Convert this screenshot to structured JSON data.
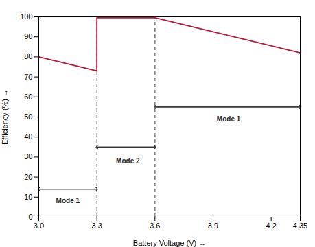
{
  "chart_data": {
    "type": "line",
    "xlabel": "Battery Voltage (V)",
    "ylabel": "Efficiency (%)",
    "x": [
      3.0,
      3.3,
      3.3,
      3.6,
      4.35
    ],
    "series": [
      {
        "color": "#b8173a",
        "values": [
          80,
          73,
          99.5,
          99.5,
          82
        ]
      }
    ],
    "xlim": [
      3.0,
      4.35
    ],
    "ylim": [
      0,
      100
    ],
    "xticks": [
      {
        "value": 3.0,
        "label": "3.0"
      },
      3.3,
      3.6,
      3.9,
      4.2,
      4.35
    ],
    "yticks": [
      0,
      10,
      20,
      30,
      40,
      50,
      60,
      70,
      80,
      90,
      100
    ],
    "grid": false,
    "vlines": {
      "x": [
        3.3,
        3.6
      ],
      "color": "#555555",
      "line_style": "dashed"
    },
    "annotations": [
      {
        "text": "Mode 1",
        "x": 3.15,
        "y": 8,
        "arrow_y": 14,
        "arrow_x": [
          3.0,
          3.3
        ],
        "color": "#333333"
      },
      {
        "text": "Mode 2",
        "x": 3.46,
        "y": 28,
        "arrow_y": 35,
        "arrow_x": [
          3.3,
          3.6
        ],
        "color": "#333333"
      },
      {
        "text": "Mode 1",
        "x": 3.98,
        "y": 49,
        "arrow_y": 55,
        "arrow_x": [
          3.6,
          4.35
        ],
        "color": "#333333"
      }
    ]
  }
}
